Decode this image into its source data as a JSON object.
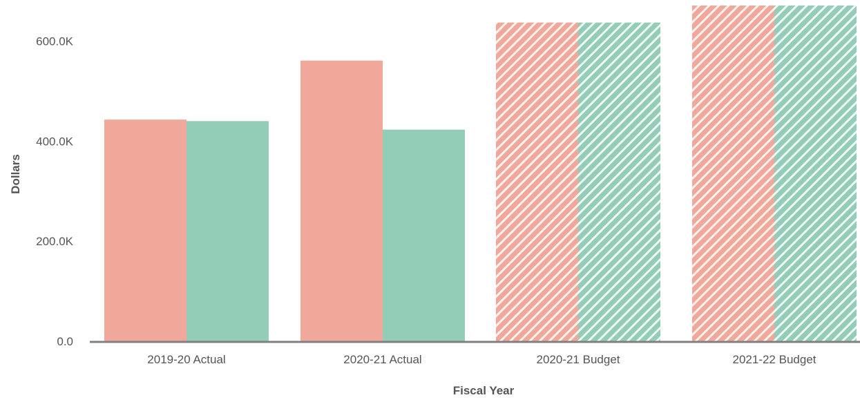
{
  "chart_data": {
    "type": "bar",
    "xlabel": "Fiscal Year",
    "ylabel": "Dollars",
    "categories": [
      "2019-20 Actual",
      "2020-21 Actual",
      "2020-21 Budget",
      "2021-22 Budget"
    ],
    "hatched_categories": [
      "2020-21 Budget",
      "2021-22 Budget"
    ],
    "series": [
      {
        "color": "#f0a89a",
        "values": [
          443000,
          561000,
          637000,
          671000
        ]
      },
      {
        "color": "#93cdb8",
        "values": [
          440000,
          423000,
          637000,
          671000
        ]
      }
    ],
    "ylim": [
      0,
      671000
    ],
    "y_ticks": [
      0,
      200000,
      400000,
      600000
    ],
    "y_tick_labels": [
      "0.0",
      "200.0K",
      "400.0K",
      "600.0K"
    ],
    "grid": false,
    "axis_color": "#808080"
  }
}
